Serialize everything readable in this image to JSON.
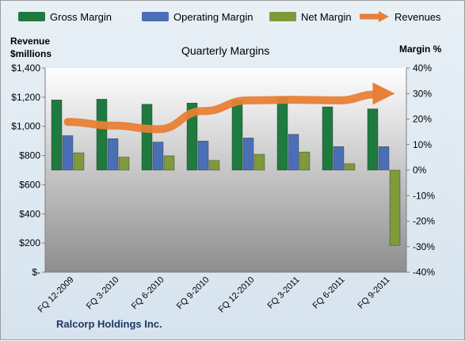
{
  "chart_data": {
    "type": "bar",
    "title": "Quarterly Margins",
    "left_axis_label": [
      "Revenue",
      "$millions"
    ],
    "right_axis_label": "Margin %",
    "categories": [
      "FQ 12-2009",
      "FQ 3-2010",
      "FQ 6-2010",
      "FQ 9-2010",
      "FQ 12-2010",
      "FQ 3-2011",
      "FQ 6-2011",
      "FQ 9-2011"
    ],
    "left_axis": {
      "min": 0,
      "max": 1400,
      "step": 200,
      "tick_labels": [
        "$-",
        "$200",
        "$400",
        "$600",
        "$800",
        "$1,000",
        "$1,200",
        "$1,400"
      ]
    },
    "right_axis": {
      "min": -40,
      "max": 40,
      "step": 10,
      "tick_labels": [
        "-40%",
        "-30%",
        "-20%",
        "-10%",
        "0%",
        "10%",
        "20%",
        "30%",
        "40%"
      ]
    },
    "series": [
      {
        "name": "Gross Margin",
        "kind": "bar",
        "axis": "right",
        "color": "#1e7a3e",
        "values": [
          27.5,
          27.8,
          25.8,
          26.3,
          27.3,
          28.5,
          24.8,
          24
        ]
      },
      {
        "name": "Operating Margin",
        "kind": "bar",
        "axis": "right",
        "color": "#4a6fb5",
        "values": [
          13.5,
          12.3,
          11,
          11.4,
          12.6,
          14,
          9.2,
          9.2
        ]
      },
      {
        "name": "Net Margin",
        "kind": "bar",
        "axis": "right",
        "color": "#7f9a3a",
        "values": [
          6.8,
          5.1,
          5.6,
          3.8,
          6.2,
          7.1,
          2.5,
          -29.5
        ]
      },
      {
        "name": "Revenues",
        "kind": "line",
        "axis": "left",
        "color": "#e87f36",
        "values": [
          1030,
          1005,
          980,
          1105,
          1178,
          1182,
          1178,
          1225
        ]
      }
    ],
    "grid": false,
    "legend": "top"
  },
  "footer": {
    "company": "Ralcorp Holdings Inc."
  }
}
